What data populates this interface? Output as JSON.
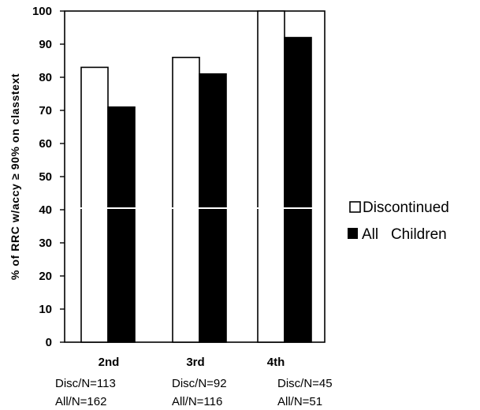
{
  "chart_data": {
    "type": "bar",
    "categories": [
      "2nd",
      "3rd",
      "4th"
    ],
    "category_notes": [
      [
        "Disc/N=113",
        "All/N=162"
      ],
      [
        "Disc/N=92",
        "All/N=116"
      ],
      [
        "Disc/N=45",
        "All/N=51"
      ]
    ],
    "series": [
      {
        "name": "Discontinued",
        "values": [
          83,
          86,
          100
        ],
        "fill": "#ffffff"
      },
      {
        "name": "All Children",
        "values": [
          71,
          81,
          92
        ],
        "fill": "#000000"
      }
    ],
    "legend_labels": [
      "Discontinued",
      "All   Children"
    ],
    "ylabel": "% of RRC w/accy ≥ 90% on classtext",
    "xlabel": "",
    "title": "",
    "ylim": [
      0,
      100
    ],
    "yticks": [
      0,
      10,
      20,
      30,
      40,
      50,
      60,
      70,
      80,
      90,
      100
    ],
    "grid": false,
    "legend_position": "right"
  }
}
